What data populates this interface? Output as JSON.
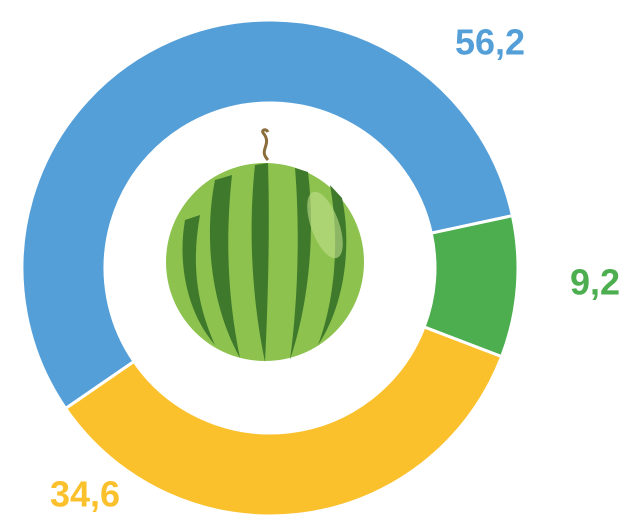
{
  "chart_data": {
    "type": "donut",
    "values": [
      56.2,
      9.2,
      34.6
    ],
    "value_labels": [
      "56,2",
      "9,2",
      "34,6"
    ],
    "colors": [
      "#559fd9",
      "#4cae4f",
      "#fbc12d"
    ]
  }
}
